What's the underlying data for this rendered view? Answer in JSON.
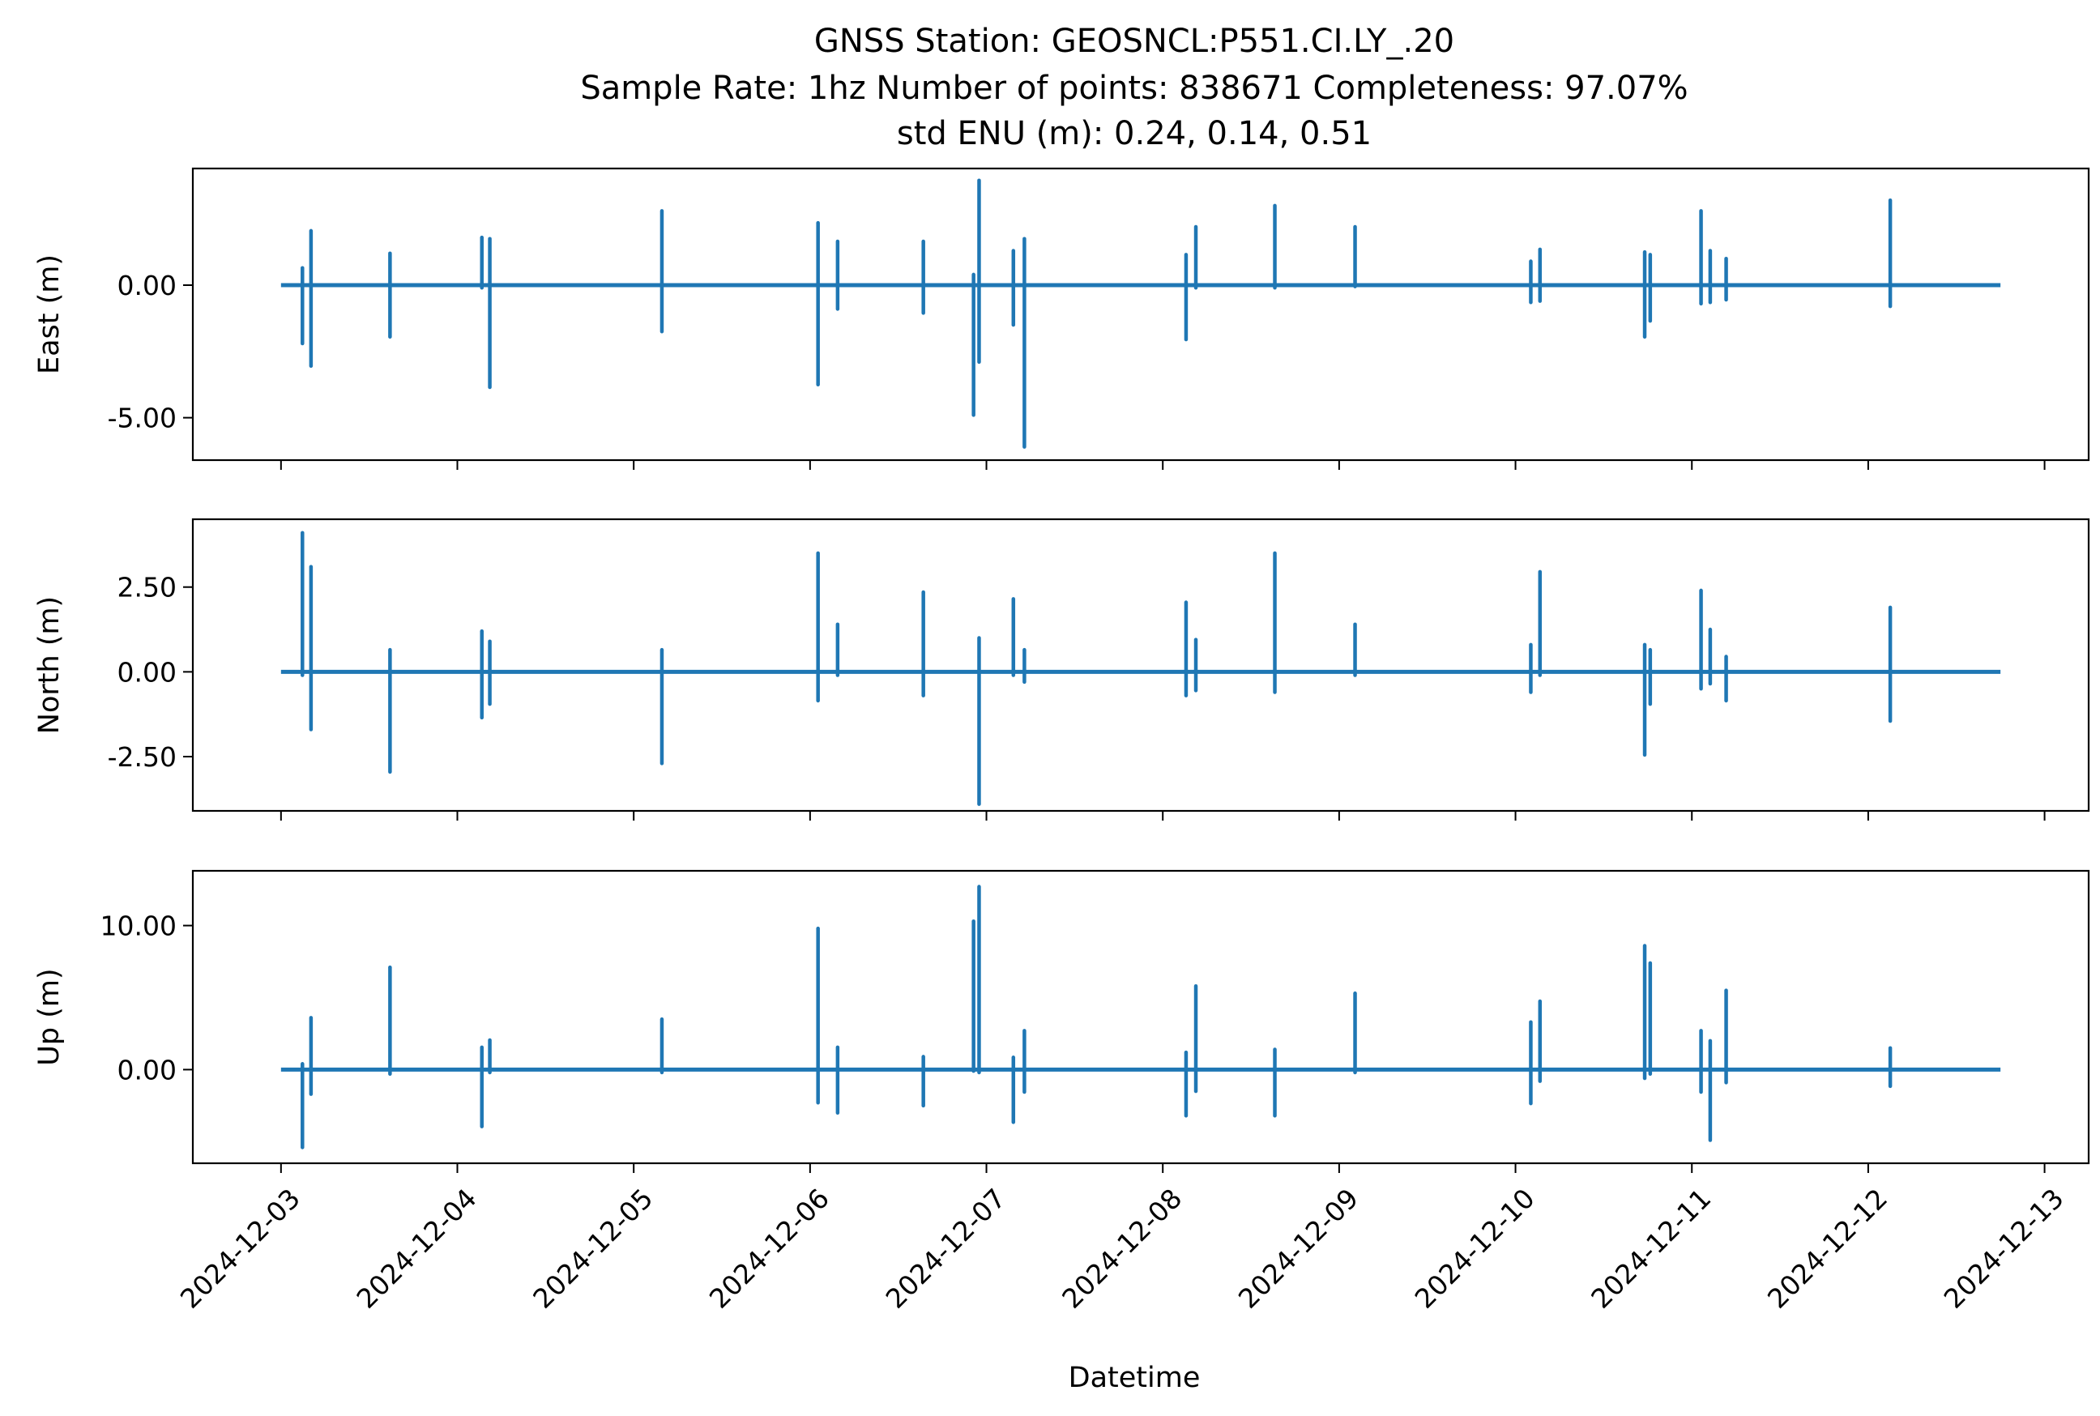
{
  "chart_data": {
    "type": "line",
    "title_lines": [
      "GNSS Station: GEOSNCL:P551.CI.LY_.20",
      "Sample Rate: 1hz   Number of points: 838671    Completeness:  97.07%",
      "std ENU (m):  0.24, 0.14, 0.51"
    ],
    "xlabel": "Datetime",
    "x_ticks": [
      "2024-12-03",
      "2024-12-04",
      "2024-12-05",
      "2024-12-06",
      "2024-12-07",
      "2024-12-08",
      "2024-12-09",
      "2024-12-10",
      "2024-12-11",
      "2024-12-12",
      "2024-12-13"
    ],
    "xlim": [
      "2024-12-02T12:00",
      "2024-12-13T06:00"
    ],
    "data_range": [
      "2024-12-03T00:00",
      "2024-12-12T18:00"
    ],
    "line_color": "#1f77b4",
    "grid": false,
    "panels": [
      {
        "ylabel": "East (m)",
        "ylim": [
          -6.6,
          4.4
        ],
        "yticks": [
          {
            "value": 0,
            "label": "0.00"
          },
          {
            "value": -5,
            "label": "-5.00"
          }
        ],
        "spikes": [
          {
            "t": "2024-12-03T02:55",
            "hi": 0.65,
            "lo": -2.2
          },
          {
            "t": "2024-12-03T04:05",
            "hi": 2.05,
            "lo": -3.05
          },
          {
            "t": "2024-12-03T14:50",
            "hi": 1.2,
            "lo": -1.95
          },
          {
            "t": "2024-12-04T03:20",
            "hi": 1.8,
            "lo": -0.1
          },
          {
            "t": "2024-12-04T04:25",
            "hi": 1.75,
            "lo": -3.85
          },
          {
            "t": "2024-12-05T03:50",
            "hi": 2.8,
            "lo": -1.75
          },
          {
            "t": "2024-12-06T01:05",
            "hi": 2.35,
            "lo": -3.75
          },
          {
            "t": "2024-12-06T03:45",
            "hi": 1.65,
            "lo": -0.9
          },
          {
            "t": "2024-12-06T15:25",
            "hi": 1.65,
            "lo": -1.05
          },
          {
            "t": "2024-12-06T22:15",
            "hi": 0.4,
            "lo": -4.9
          },
          {
            "t": "2024-12-06T23:00",
            "hi": 3.95,
            "lo": -2.9
          },
          {
            "t": "2024-12-07T03:40",
            "hi": 1.3,
            "lo": -1.5
          },
          {
            "t": "2024-12-07T05:10",
            "hi": 1.75,
            "lo": -6.1
          },
          {
            "t": "2024-12-08T03:10",
            "hi": 1.15,
            "lo": -2.05
          },
          {
            "t": "2024-12-08T04:30",
            "hi": 2.2,
            "lo": -0.1
          },
          {
            "t": "2024-12-08T15:15",
            "hi": 3.0,
            "lo": -0.1
          },
          {
            "t": "2024-12-09T02:10",
            "hi": 2.2,
            "lo": -0.05
          },
          {
            "t": "2024-12-10T02:05",
            "hi": 0.9,
            "lo": -0.65
          },
          {
            "t": "2024-12-10T03:20",
            "hi": 1.35,
            "lo": -0.6
          },
          {
            "t": "2024-12-10T17:35",
            "hi": 1.25,
            "lo": -1.95
          },
          {
            "t": "2024-12-10T18:20",
            "hi": 1.15,
            "lo": -1.35
          },
          {
            "t": "2024-12-11T01:15",
            "hi": 2.8,
            "lo": -0.7
          },
          {
            "t": "2024-12-11T02:30",
            "hi": 1.3,
            "lo": -0.65
          },
          {
            "t": "2024-12-11T04:40",
            "hi": 1.0,
            "lo": -0.55
          },
          {
            "t": "2024-12-12T03:00",
            "hi": 3.2,
            "lo": -0.8
          }
        ]
      },
      {
        "ylabel": "North (m)",
        "ylim": [
          -4.1,
          4.5
        ],
        "yticks": [
          {
            "value": 2.5,
            "label": "2.50"
          },
          {
            "value": 0,
            "label": "0.00"
          },
          {
            "value": -2.5,
            "label": "-2.50"
          }
        ],
        "spikes": [
          {
            "t": "2024-12-03T02:55",
            "hi": 4.1,
            "lo": -0.1
          },
          {
            "t": "2024-12-03T04:05",
            "hi": 3.1,
            "lo": -1.7
          },
          {
            "t": "2024-12-03T14:50",
            "hi": 0.65,
            "lo": -2.95
          },
          {
            "t": "2024-12-04T03:20",
            "hi": 1.2,
            "lo": -1.35
          },
          {
            "t": "2024-12-04T04:25",
            "hi": 0.9,
            "lo": -0.95
          },
          {
            "t": "2024-12-05T03:50",
            "hi": 0.65,
            "lo": -2.7
          },
          {
            "t": "2024-12-06T01:05",
            "hi": 3.5,
            "lo": -0.85
          },
          {
            "t": "2024-12-06T03:45",
            "hi": 1.4,
            "lo": -0.1
          },
          {
            "t": "2024-12-06T15:25",
            "hi": 2.35,
            "lo": -0.7
          },
          {
            "t": "2024-12-06T23:00",
            "hi": 1.0,
            "lo": -3.9
          },
          {
            "t": "2024-12-07T03:40",
            "hi": 2.15,
            "lo": -0.1
          },
          {
            "t": "2024-12-07T05:10",
            "hi": 0.65,
            "lo": -0.3
          },
          {
            "t": "2024-12-08T03:10",
            "hi": 2.05,
            "lo": -0.7
          },
          {
            "t": "2024-12-08T04:30",
            "hi": 0.95,
            "lo": -0.55
          },
          {
            "t": "2024-12-08T15:15",
            "hi": 3.5,
            "lo": -0.6
          },
          {
            "t": "2024-12-09T02:10",
            "hi": 1.4,
            "lo": -0.1
          },
          {
            "t": "2024-12-10T02:05",
            "hi": 0.8,
            "lo": -0.6
          },
          {
            "t": "2024-12-10T03:20",
            "hi": 2.95,
            "lo": -0.1
          },
          {
            "t": "2024-12-10T17:35",
            "hi": 0.8,
            "lo": -2.45
          },
          {
            "t": "2024-12-10T18:20",
            "hi": 0.65,
            "lo": -0.95
          },
          {
            "t": "2024-12-11T01:15",
            "hi": 2.4,
            "lo": -0.5
          },
          {
            "t": "2024-12-11T02:30",
            "hi": 1.25,
            "lo": -0.35
          },
          {
            "t": "2024-12-11T04:40",
            "hi": 0.45,
            "lo": -0.85
          },
          {
            "t": "2024-12-12T03:00",
            "hi": 1.9,
            "lo": -1.45
          }
        ]
      },
      {
        "ylabel": "Up (m)",
        "ylim": [
          -6.5,
          13.8
        ],
        "yticks": [
          {
            "value": 10,
            "label": "10.00"
          },
          {
            "value": 0,
            "label": "0.00"
          }
        ],
        "spikes": [
          {
            "t": "2024-12-03T02:55",
            "hi": 0.4,
            "lo": -5.4
          },
          {
            "t": "2024-12-03T04:05",
            "hi": 3.6,
            "lo": -1.7
          },
          {
            "t": "2024-12-03T14:50",
            "hi": 7.1,
            "lo": -0.3
          },
          {
            "t": "2024-12-04T03:20",
            "hi": 1.55,
            "lo": -3.95
          },
          {
            "t": "2024-12-04T04:25",
            "hi": 2.05,
            "lo": -0.2
          },
          {
            "t": "2024-12-05T03:50",
            "hi": 3.5,
            "lo": -0.2
          },
          {
            "t": "2024-12-06T01:05",
            "hi": 9.8,
            "lo": -2.3
          },
          {
            "t": "2024-12-06T03:45",
            "hi": 1.55,
            "lo": -3.0
          },
          {
            "t": "2024-12-06T15:25",
            "hi": 0.9,
            "lo": -2.5
          },
          {
            "t": "2024-12-06T22:15",
            "hi": 10.3,
            "lo": -0.1
          },
          {
            "t": "2024-12-06T23:00",
            "hi": 12.7,
            "lo": -0.2
          },
          {
            "t": "2024-12-07T03:40",
            "hi": 0.85,
            "lo": -3.65
          },
          {
            "t": "2024-12-07T05:10",
            "hi": 2.7,
            "lo": -1.55
          },
          {
            "t": "2024-12-08T03:10",
            "hi": 1.2,
            "lo": -3.2
          },
          {
            "t": "2024-12-08T04:30",
            "hi": 5.8,
            "lo": -1.5
          },
          {
            "t": "2024-12-08T15:15",
            "hi": 1.4,
            "lo": -3.2
          },
          {
            "t": "2024-12-09T02:10",
            "hi": 5.3,
            "lo": -0.2
          },
          {
            "t": "2024-12-10T02:05",
            "hi": 3.3,
            "lo": -2.35
          },
          {
            "t": "2024-12-10T03:20",
            "hi": 4.75,
            "lo": -0.8
          },
          {
            "t": "2024-12-10T17:35",
            "hi": 8.6,
            "lo": -0.6
          },
          {
            "t": "2024-12-10T18:20",
            "hi": 7.4,
            "lo": -0.3
          },
          {
            "t": "2024-12-11T01:15",
            "hi": 2.7,
            "lo": -1.55
          },
          {
            "t": "2024-12-11T02:30",
            "hi": 2.0,
            "lo": -4.9
          },
          {
            "t": "2024-12-11T04:40",
            "hi": 5.5,
            "lo": -0.9
          },
          {
            "t": "2024-12-12T03:00",
            "hi": 1.5,
            "lo": -1.15
          }
        ]
      }
    ]
  }
}
